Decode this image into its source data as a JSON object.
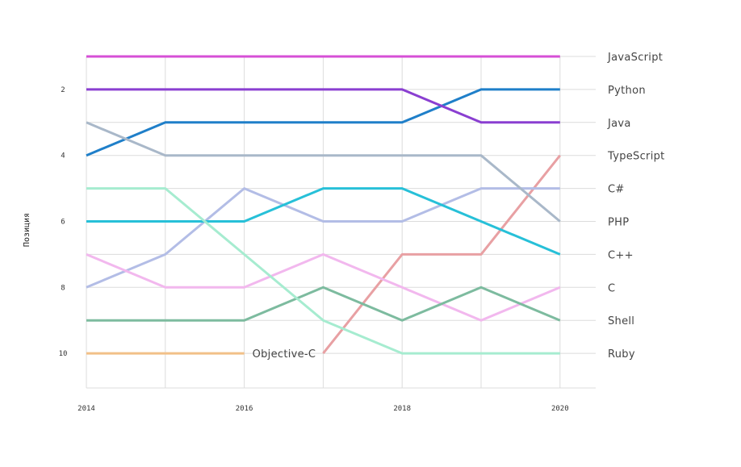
{
  "chart_data": {
    "type": "line",
    "title": "",
    "xlabel": "",
    "ylabel": "Позиция",
    "x": [
      2014,
      2015,
      2016,
      2017,
      2018,
      2019,
      2020
    ],
    "x_tick_labels": [
      "2014",
      "2016",
      "2018",
      "2020"
    ],
    "y_tick_labels": [
      "2",
      "4",
      "6",
      "8",
      "10"
    ],
    "xlim": [
      2014,
      2020.5
    ],
    "ylim": [
      11,
      1
    ],
    "y_inverted": true,
    "grid": true,
    "legend": "labels at right end of lines",
    "series": [
      {
        "name": "JavaScript",
        "color": "#d64fd6",
        "values": [
          1,
          1,
          1,
          1,
          1,
          1,
          1
        ]
      },
      {
        "name": "Python",
        "color": "#1f7fc9",
        "values": [
          4,
          3,
          3,
          3,
          3,
          2,
          2
        ]
      },
      {
        "name": "Java",
        "color": "#8a3fd1",
        "values": [
          2,
          2,
          2,
          2,
          2,
          3,
          3
        ]
      },
      {
        "name": "TypeScript",
        "color": "#e8a0a3",
        "values": [
          null,
          null,
          null,
          10,
          7,
          7,
          4
        ]
      },
      {
        "name": "C#",
        "color": "#b3bde6",
        "values": [
          8,
          7,
          5,
          6,
          6,
          5,
          5
        ]
      },
      {
        "name": "PHP",
        "color": "#a9b8c9",
        "values": [
          3,
          4,
          4,
          4,
          4,
          4,
          6
        ]
      },
      {
        "name": "C++",
        "color": "#27c0d8",
        "values": [
          6,
          6,
          6,
          5,
          5,
          6,
          7
        ]
      },
      {
        "name": "C",
        "color": "#f2b8ee",
        "values": [
          7,
          8,
          8,
          7,
          8,
          9,
          8
        ]
      },
      {
        "name": "Shell",
        "color": "#7dbb9f",
        "values": [
          9,
          9,
          9,
          8,
          9,
          8,
          9
        ]
      },
      {
        "name": "Ruby",
        "color": "#a6ecd0",
        "values": [
          5,
          5,
          7,
          9,
          10,
          10,
          10
        ]
      },
      {
        "name": "Objective-C",
        "color": "#f2c088",
        "values": [
          10,
          10,
          10,
          null,
          null,
          null,
          null
        ]
      }
    ],
    "right_labels": [
      {
        "text": "JavaScript",
        "rank": 1
      },
      {
        "text": "Python",
        "rank": 2
      },
      {
        "text": "Java",
        "rank": 3
      },
      {
        "text": "TypeScript",
        "rank": 4
      },
      {
        "text": "C#",
        "rank": 5
      },
      {
        "text": "PHP",
        "rank": 6
      },
      {
        "text": "C++",
        "rank": 7
      },
      {
        "text": "C",
        "rank": 8
      },
      {
        "text": "Shell",
        "rank": 9
      },
      {
        "text": "Ruby",
        "rank": 10
      }
    ],
    "inline_labels": [
      {
        "text": "Objective-C",
        "x": 2016,
        "rank": 10
      }
    ]
  }
}
